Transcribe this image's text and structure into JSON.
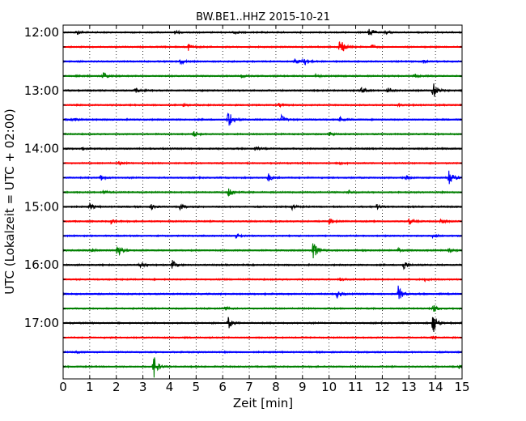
{
  "chart_data": {
    "type": "line",
    "title": "BW.BE1..HHZ 2015-10-21",
    "xlabel": "Zeit  [min]",
    "ylabel": "UTC (Lokalzeit = UTC + 02:00)",
    "xlim": [
      0,
      15
    ],
    "x_ticks": [
      "0",
      "1",
      "2",
      "3",
      "4",
      "5",
      "6",
      "7",
      "8",
      "9",
      "10",
      "11",
      "12",
      "13",
      "14",
      "15"
    ],
    "y_tick_labels": [
      "12:00",
      "13:00",
      "14:00",
      "15:00",
      "16:00",
      "17:00"
    ],
    "grid": true,
    "trace_colors": [
      "#000000",
      "#ff0000",
      "#0000ff",
      "#008000"
    ],
    "series": [
      {
        "start": "12:00",
        "events": [
          [
            0.5,
            0.3
          ],
          [
            4.2,
            0.3
          ],
          [
            6.4,
            0.25
          ],
          [
            11.5,
            0.6
          ],
          [
            12.1,
            0.3
          ]
        ]
      },
      {
        "start": "12:15",
        "events": [
          [
            4.7,
            0.5
          ],
          [
            10.4,
            1.6
          ],
          [
            11.6,
            0.3
          ]
        ]
      },
      {
        "start": "12:30",
        "events": [
          [
            4.4,
            0.4
          ],
          [
            8.7,
            0.4
          ],
          [
            9.0,
            0.8
          ],
          [
            13.5,
            0.4
          ]
        ]
      },
      {
        "start": "12:45",
        "events": [
          [
            1.5,
            0.5
          ],
          [
            6.7,
            0.2
          ],
          [
            9.5,
            0.2
          ],
          [
            13.2,
            0.3
          ]
        ]
      },
      {
        "start": "13:00",
        "events": [
          [
            2.7,
            0.4
          ],
          [
            11.2,
            0.5
          ],
          [
            12.2,
            0.4
          ],
          [
            13.9,
            1.3
          ]
        ]
      },
      {
        "start": "13:15",
        "events": [
          [
            4.5,
            0.2
          ],
          [
            8.1,
            0.2
          ],
          [
            12.6,
            0.2
          ]
        ]
      },
      {
        "start": "13:30",
        "events": [
          [
            0.4,
            0.3
          ],
          [
            6.2,
            1.6
          ],
          [
            8.2,
            0.5
          ],
          [
            10.4,
            0.3
          ]
        ]
      },
      {
        "start": "13:45",
        "events": [
          [
            4.9,
            0.4
          ],
          [
            10.0,
            0.3
          ]
        ]
      },
      {
        "start": "14:00",
        "events": [
          [
            0.7,
            0.2
          ],
          [
            7.2,
            0.3
          ]
        ]
      },
      {
        "start": "14:15",
        "events": [
          [
            2.1,
            0.2
          ],
          [
            10.4,
            0.3
          ]
        ]
      },
      {
        "start": "14:30",
        "events": [
          [
            1.4,
            0.4
          ],
          [
            7.7,
            0.6
          ],
          [
            12.9,
            0.3
          ],
          [
            14.5,
            1.4
          ]
        ]
      },
      {
        "start": "14:45",
        "events": [
          [
            1.5,
            0.3
          ],
          [
            6.2,
            0.8
          ],
          [
            10.7,
            0.3
          ]
        ]
      },
      {
        "start": "15:00",
        "events": [
          [
            1.0,
            0.4
          ],
          [
            3.3,
            0.3
          ],
          [
            4.4,
            0.4
          ],
          [
            8.6,
            0.3
          ],
          [
            11.8,
            0.3
          ]
        ]
      },
      {
        "start": "15:15",
        "events": [
          [
            1.8,
            0.3
          ],
          [
            10.0,
            0.4
          ],
          [
            13.0,
            0.4
          ],
          [
            14.2,
            0.3
          ]
        ]
      },
      {
        "start": "15:30",
        "events": [
          [
            6.5,
            0.4
          ],
          [
            13.9,
            0.3
          ]
        ]
      },
      {
        "start": "15:45",
        "events": [
          [
            1.1,
            0.3
          ],
          [
            2.0,
            1.2
          ],
          [
            9.4,
            1.3
          ],
          [
            12.6,
            0.3
          ],
          [
            14.5,
            0.2
          ]
        ]
      },
      {
        "start": "16:00",
        "events": [
          [
            2.9,
            0.5
          ],
          [
            4.1,
            0.6
          ],
          [
            12.8,
            0.6
          ]
        ]
      },
      {
        "start": "16:15",
        "events": [
          [
            10.4,
            0.2
          ],
          [
            13.6,
            0.2
          ]
        ]
      },
      {
        "start": "16:30",
        "events": [
          [
            10.3,
            0.5
          ],
          [
            12.6,
            1.0
          ]
        ]
      },
      {
        "start": "16:45",
        "events": [
          [
            6.1,
            0.2
          ],
          [
            13.9,
            0.6
          ]
        ]
      },
      {
        "start": "17:00",
        "events": [
          [
            6.2,
            0.8
          ],
          [
            13.9,
            1.8
          ]
        ]
      },
      {
        "start": "17:15",
        "events": [
          [
            13.9,
            0.2
          ]
        ]
      },
      {
        "start": "17:30",
        "events": [
          [
            0.5,
            0.1
          ]
        ]
      },
      {
        "start": "17:45",
        "events": [
          [
            3.4,
            1.6
          ],
          [
            14.9,
            0.3
          ]
        ]
      }
    ]
  }
}
